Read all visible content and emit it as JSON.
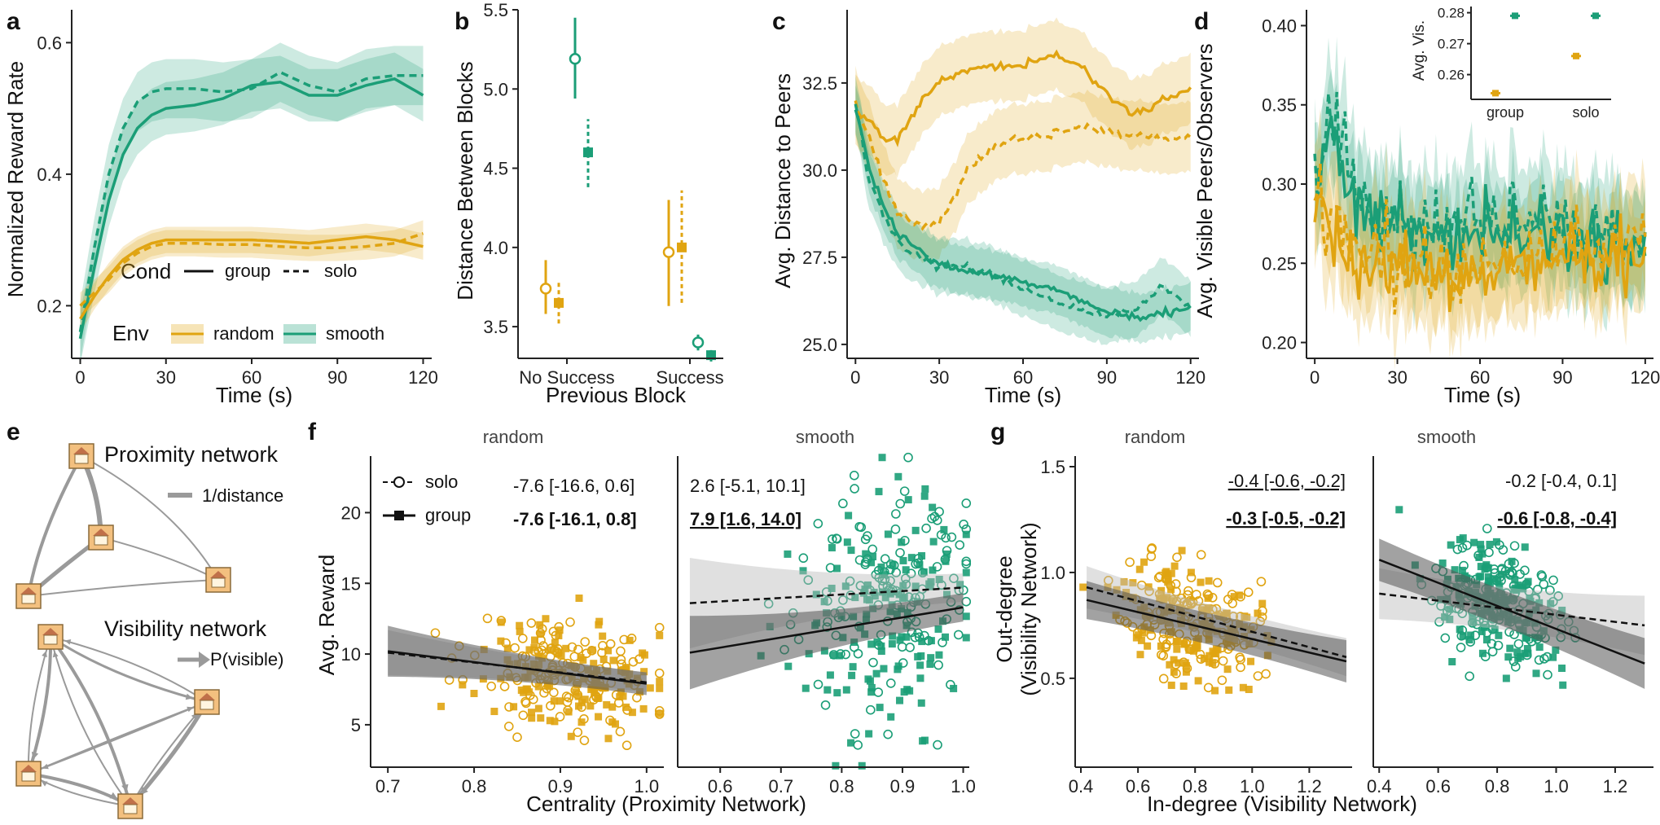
{
  "colors": {
    "random": "#E0A411",
    "smooth": "#1B9E77",
    "black": "#111111",
    "grey": "#9a9a9a"
  },
  "legend": {
    "cond_title": "Cond",
    "cond_group": "group",
    "cond_solo": "solo",
    "env_title": "Env",
    "env_random": "random",
    "env_smooth": "smooth"
  },
  "chart_data": [
    {
      "id": "a",
      "panel_label": "a",
      "type": "line",
      "xlabel": "Time (s)",
      "ylabel": "Normalized Reward Rate",
      "xlim": [
        -3,
        123
      ],
      "ylim": [
        0.12,
        0.65
      ],
      "xticks": [
        "0",
        "30",
        "60",
        "90",
        "120"
      ],
      "xtick_values": [
        0,
        30,
        60,
        90,
        120
      ],
      "yticks": [
        "0.2",
        "0.4",
        "0.6"
      ],
      "ytick_values": [
        0.2,
        0.4,
        0.6
      ],
      "series": [
        {
          "name": "smooth-group",
          "env": "smooth",
          "cond": "group",
          "band": 0.04,
          "x": [
            0,
            5,
            10,
            15,
            20,
            25,
            30,
            40,
            50,
            60,
            70,
            80,
            90,
            100,
            110,
            120
          ],
          "y": [
            0.15,
            0.26,
            0.36,
            0.43,
            0.47,
            0.49,
            0.5,
            0.505,
            0.515,
            0.535,
            0.54,
            0.52,
            0.52,
            0.535,
            0.545,
            0.52
          ]
        },
        {
          "name": "smooth-solo",
          "env": "smooth",
          "cond": "solo",
          "band": 0.045,
          "x": [
            0,
            5,
            10,
            15,
            20,
            25,
            30,
            40,
            50,
            60,
            70,
            80,
            90,
            100,
            110,
            120
          ],
          "y": [
            0.16,
            0.29,
            0.4,
            0.47,
            0.51,
            0.525,
            0.53,
            0.53,
            0.525,
            0.53,
            0.555,
            0.535,
            0.525,
            0.545,
            0.55,
            0.55
          ]
        },
        {
          "name": "random-group",
          "env": "random",
          "cond": "group",
          "band": 0.02,
          "x": [
            0,
            5,
            10,
            15,
            20,
            25,
            30,
            40,
            50,
            60,
            70,
            80,
            90,
            100,
            110,
            120
          ],
          "y": [
            0.18,
            0.215,
            0.245,
            0.27,
            0.285,
            0.295,
            0.3,
            0.3,
            0.3,
            0.3,
            0.298,
            0.295,
            0.3,
            0.305,
            0.3,
            0.29
          ]
        },
        {
          "name": "random-solo",
          "env": "random",
          "cond": "solo",
          "band": 0.02,
          "x": [
            0,
            5,
            10,
            15,
            20,
            25,
            30,
            40,
            50,
            60,
            70,
            80,
            90,
            100,
            110,
            120
          ],
          "y": [
            0.2,
            0.22,
            0.24,
            0.265,
            0.28,
            0.29,
            0.295,
            0.295,
            0.293,
            0.293,
            0.29,
            0.288,
            0.288,
            0.29,
            0.295,
            0.31
          ]
        }
      ]
    },
    {
      "id": "b",
      "panel_label": "b",
      "type": "scatter",
      "xlabel": "Previous Block",
      "ylabel": "Distance Between Blocks",
      "categories": [
        "No Success",
        "Success"
      ],
      "ylim": [
        3.3,
        5.5
      ],
      "yticks": [
        "3.5",
        "4.0",
        "4.5",
        "5.0",
        "5.5"
      ],
      "ytick_values": [
        3.5,
        4.0,
        4.5,
        5.0,
        5.5
      ],
      "points": [
        {
          "category": "No Success",
          "env": "random",
          "cond": "solo",
          "value": 3.74,
          "lo": 3.58,
          "hi": 3.92
        },
        {
          "category": "No Success",
          "env": "random",
          "cond": "group",
          "value": 3.65,
          "lo": 3.52,
          "hi": 3.78
        },
        {
          "category": "No Success",
          "env": "smooth",
          "cond": "solo",
          "value": 5.19,
          "lo": 4.94,
          "hi": 5.45
        },
        {
          "category": "No Success",
          "env": "smooth",
          "cond": "group",
          "value": 4.6,
          "lo": 4.38,
          "hi": 4.81
        },
        {
          "category": "Success",
          "env": "random",
          "cond": "solo",
          "value": 3.97,
          "lo": 3.63,
          "hi": 4.3
        },
        {
          "category": "Success",
          "env": "random",
          "cond": "group",
          "value": 4.0,
          "lo": 3.65,
          "hi": 4.36
        },
        {
          "category": "Success",
          "env": "smooth",
          "cond": "solo",
          "value": 3.4,
          "lo": 3.35,
          "hi": 3.45
        },
        {
          "category": "Success",
          "env": "smooth",
          "cond": "group",
          "value": 3.32,
          "lo": 3.28,
          "hi": 3.36
        }
      ]
    },
    {
      "id": "c",
      "panel_label": "c",
      "type": "line",
      "xlabel": "Time (s)",
      "ylabel": "Avg. Distance to Peers",
      "xlim": [
        -3,
        123
      ],
      "ylim": [
        24.6,
        34.6
      ],
      "xticks": [
        "0",
        "30",
        "60",
        "90",
        "120"
      ],
      "xtick_values": [
        0,
        30,
        60,
        90,
        120
      ],
      "yticks": [
        "25.0",
        "27.5",
        "30.0",
        "32.5"
      ],
      "ytick_values": [
        25.0,
        27.5,
        30.0,
        32.5
      ],
      "series": [
        {
          "name": "random-group",
          "env": "random",
          "cond": "group",
          "band": 1.0,
          "x": [
            0,
            5,
            10,
            15,
            20,
            25,
            30,
            40,
            50,
            60,
            70,
            75,
            80,
            90,
            100,
            110,
            120
          ],
          "y": [
            31.8,
            31.4,
            30.9,
            30.9,
            31.5,
            32.1,
            32.5,
            32.9,
            33.0,
            33.0,
            33.3,
            33.2,
            33.0,
            32.2,
            31.6,
            32.0,
            32.3
          ]
        },
        {
          "name": "random-solo",
          "env": "random",
          "cond": "solo",
          "band": 1.0,
          "x": [
            0,
            5,
            10,
            15,
            20,
            25,
            30,
            35,
            40,
            50,
            60,
            70,
            80,
            90,
            100,
            110,
            120
          ],
          "y": [
            31.9,
            30.9,
            29.7,
            28.8,
            28.5,
            28.4,
            28.5,
            29.2,
            30.0,
            30.7,
            30.9,
            31.0,
            31.2,
            31.1,
            31.0,
            30.9,
            31.0
          ]
        },
        {
          "name": "smooth-group",
          "env": "smooth",
          "cond": "group",
          "band": 0.7,
          "x": [
            0,
            5,
            10,
            15,
            20,
            25,
            30,
            40,
            50,
            60,
            70,
            80,
            90,
            100,
            110,
            120
          ],
          "y": [
            31.8,
            30.0,
            29.0,
            28.2,
            27.9,
            27.5,
            27.3,
            27.1,
            27.0,
            26.8,
            26.6,
            26.3,
            25.9,
            25.8,
            25.9,
            26.1
          ]
        },
        {
          "name": "smooth-solo",
          "env": "smooth",
          "cond": "solo",
          "band": 0.8,
          "x": [
            0,
            5,
            10,
            15,
            20,
            25,
            30,
            40,
            50,
            60,
            70,
            80,
            90,
            100,
            110,
            120
          ],
          "y": [
            31.9,
            29.7,
            28.7,
            28.0,
            27.6,
            27.4,
            27.3,
            27.2,
            27.0,
            26.6,
            26.3,
            26.0,
            25.8,
            26.0,
            26.7,
            26.0
          ]
        }
      ]
    },
    {
      "id": "d",
      "panel_label": "d",
      "type": "line",
      "xlabel": "Time (s)",
      "ylabel": "Avg. Visible Peers/Observers",
      "xlim": [
        -3,
        123
      ],
      "ylim": [
        0.19,
        0.41
      ],
      "xticks": [
        "0",
        "30",
        "60",
        "90",
        "120"
      ],
      "xtick_values": [
        0,
        30,
        60,
        90,
        120
      ],
      "yticks": [
        "0.20",
        "0.25",
        "0.30",
        "0.35",
        "0.40"
      ],
      "ytick_values": [
        0.2,
        0.25,
        0.3,
        0.35,
        0.4
      ],
      "series": [
        {
          "name": "smooth-group",
          "env": "smooth",
          "cond": "group",
          "band": 0.03,
          "x": [
            0,
            5,
            10,
            15,
            20,
            25,
            30,
            40,
            50,
            60,
            70,
            80,
            90,
            100,
            110,
            120
          ],
          "y": [
            0.32,
            0.33,
            0.31,
            0.29,
            0.28,
            0.27,
            0.275,
            0.27,
            0.27,
            0.272,
            0.27,
            0.268,
            0.27,
            0.265,
            0.26,
            0.255
          ]
        },
        {
          "name": "smooth-solo",
          "env": "smooth",
          "cond": "solo",
          "band": 0.035,
          "x": [
            0,
            5,
            10,
            15,
            20,
            25,
            30,
            40,
            50,
            60,
            70,
            80,
            90,
            100,
            110,
            120
          ],
          "y": [
            0.3,
            0.34,
            0.33,
            0.3,
            0.28,
            0.275,
            0.28,
            0.275,
            0.27,
            0.28,
            0.275,
            0.27,
            0.275,
            0.27,
            0.27,
            0.265
          ]
        },
        {
          "name": "random-group",
          "env": "random",
          "cond": "group",
          "band": 0.03,
          "x": [
            0,
            5,
            10,
            15,
            20,
            25,
            30,
            40,
            50,
            60,
            70,
            80,
            90,
            100,
            110,
            120
          ],
          "y": [
            0.29,
            0.27,
            0.26,
            0.25,
            0.245,
            0.245,
            0.25,
            0.245,
            0.24,
            0.245,
            0.248,
            0.25,
            0.252,
            0.255,
            0.258,
            0.26
          ]
        },
        {
          "name": "random-solo",
          "env": "random",
          "cond": "solo",
          "band": 0.035,
          "x": [
            0,
            5,
            10,
            15,
            20,
            25,
            30,
            40,
            50,
            60,
            70,
            80,
            90,
            100,
            110,
            120
          ],
          "y": [
            0.29,
            0.28,
            0.27,
            0.26,
            0.255,
            0.25,
            0.255,
            0.25,
            0.245,
            0.25,
            0.252,
            0.255,
            0.26,
            0.26,
            0.262,
            0.265
          ]
        }
      ],
      "inset": {
        "type": "scatter",
        "ylabel": "Avg. Vis.",
        "categories": [
          "group",
          "solo"
        ],
        "ylim": [
          0.252,
          0.282
        ],
        "yticks": [
          "0.26",
          "0.27",
          "0.28"
        ],
        "ytick_values": [
          0.26,
          0.27,
          0.28
        ],
        "points": [
          {
            "category": "group",
            "env": "random",
            "value": 0.254
          },
          {
            "category": "group",
            "env": "smooth",
            "value": 0.279
          },
          {
            "category": "solo",
            "env": "random",
            "value": 0.266
          },
          {
            "category": "solo",
            "env": "smooth",
            "value": 0.279
          }
        ]
      }
    },
    {
      "id": "f",
      "panel_label": "f",
      "type": "scatter",
      "xlabel": "Centrality (Proximity Network)",
      "ylabel": "Avg. Reward",
      "ylim": [
        2,
        24
      ],
      "yticks": [
        "5",
        "10",
        "15",
        "20"
      ],
      "ytick_values": [
        5,
        10,
        15,
        20
      ],
      "facets": [
        {
          "title": "random",
          "env": "random",
          "xlim": [
            0.68,
            1.02
          ],
          "xticks": [
            "0.7",
            "0.8",
            "0.9",
            "1.0"
          ],
          "xtick_values": [
            0.7,
            0.8,
            0.9,
            1.0
          ],
          "n_points": 260,
          "x_mean": 0.91,
          "x_sd": 0.055,
          "y_sd": 2.0,
          "seed": 11,
          "lines": [
            {
              "cond": "solo",
              "x0": 0.7,
              "x1": 1.0,
              "y0": 10.1,
              "y1": 8.0,
              "band0": 1.6,
              "band1": 0.7
            },
            {
              "cond": "group",
              "x0": 0.7,
              "x1": 1.0,
              "y0": 10.2,
              "y1": 7.9,
              "band0": 1.8,
              "band1": 0.8
            }
          ],
          "ann_solo": "-7.6 [-16.6, 0.6]",
          "ann_group": "-7.6 [-16.1, 0.8]"
        },
        {
          "title": "smooth",
          "env": "smooth",
          "xlim": [
            0.53,
            1.01
          ],
          "xticks": [
            "0.6",
            "0.7",
            "0.8",
            "0.9",
            "1.0"
          ],
          "xtick_values": [
            0.6,
            0.7,
            0.8,
            0.9,
            1.0
          ],
          "n_points": 280,
          "x_mean": 0.87,
          "x_sd": 0.075,
          "y_sd": 4.0,
          "seed": 23,
          "lines": [
            {
              "cond": "solo",
              "x0": 0.55,
              "x1": 1.0,
              "y0": 13.6,
              "y1": 14.7,
              "band0": 3.2,
              "band1": 1.0
            },
            {
              "cond": "group",
              "x0": 0.55,
              "x1": 1.0,
              "y0": 10.1,
              "y1": 13.3,
              "band0": 2.6,
              "band1": 1.0
            }
          ],
          "ann_solo": "2.6 [-5.1, 10.1]",
          "ann_group": "7.9 [1.6, 14.0]"
        }
      ],
      "legend": {
        "solo": "solo",
        "group": "group"
      }
    },
    {
      "id": "g",
      "panel_label": "g",
      "type": "scatter",
      "xlabel": "In-degree (Visibility Network)",
      "ylabel": "Out-degree (Visibility Network)",
      "ylabel_line1": "Out-degree",
      "ylabel_line2": "(Visibility Network)",
      "ylim": [
        0.08,
        1.55
      ],
      "yticks": [
        "0.5",
        "1.0",
        "1.5"
      ],
      "ytick_values": [
        0.5,
        1.0,
        1.5
      ],
      "facets": [
        {
          "title": "random",
          "env": "random",
          "xlim": [
            0.38,
            1.35
          ],
          "xticks": [
            "0.4",
            "0.6",
            "0.8",
            "1.0",
            "1.2"
          ],
          "xtick_values": [
            0.4,
            0.6,
            0.8,
            1.0,
            1.2
          ],
          "n_points": 260,
          "x_mean": 0.78,
          "x_sd": 0.12,
          "y_sd": 0.14,
          "seed": 37,
          "lines": [
            {
              "cond": "solo",
              "x0": 0.42,
              "x1": 1.33,
              "y0": 0.93,
              "y1": 0.6,
              "band0": 0.1,
              "band1": 0.09
            },
            {
              "cond": "group",
              "x0": 0.42,
              "x1": 1.33,
              "y0": 0.87,
              "y1": 0.58,
              "band0": 0.09,
              "band1": 0.1
            }
          ],
          "ann_solo": "-0.4 [-0.6, -0.2]",
          "ann_group": "-0.3 [-0.5, -0.2]"
        },
        {
          "title": "smooth",
          "env": "smooth",
          "xlim": [
            0.38,
            1.33
          ],
          "xticks": [
            "0.4",
            "0.6",
            "0.8",
            "1.0",
            "1.2"
          ],
          "xtick_values": [
            0.4,
            0.6,
            0.8,
            1.0,
            1.2
          ],
          "n_points": 280,
          "x_mean": 0.8,
          "x_sd": 0.11,
          "y_sd": 0.14,
          "seed": 51,
          "lines": [
            {
              "cond": "solo",
              "x0": 0.4,
              "x1": 1.3,
              "y0": 0.9,
              "y1": 0.75,
              "band0": 0.12,
              "band1": 0.14
            },
            {
              "cond": "group",
              "x0": 0.4,
              "x1": 1.3,
              "y0": 1.06,
              "y1": 0.57,
              "band0": 0.1,
              "band1": 0.12
            }
          ],
          "ann_solo": "-0.2 [-0.4, 0.1]",
          "ann_group": "-0.6 [-0.8, -0.4]"
        }
      ]
    }
  ],
  "panel_e": {
    "label": "e",
    "proximity_title": "Proximity network",
    "proximity_legend": "1/distance",
    "visibility_title": "Visibility network",
    "visibility_legend": "P(visible)"
  }
}
